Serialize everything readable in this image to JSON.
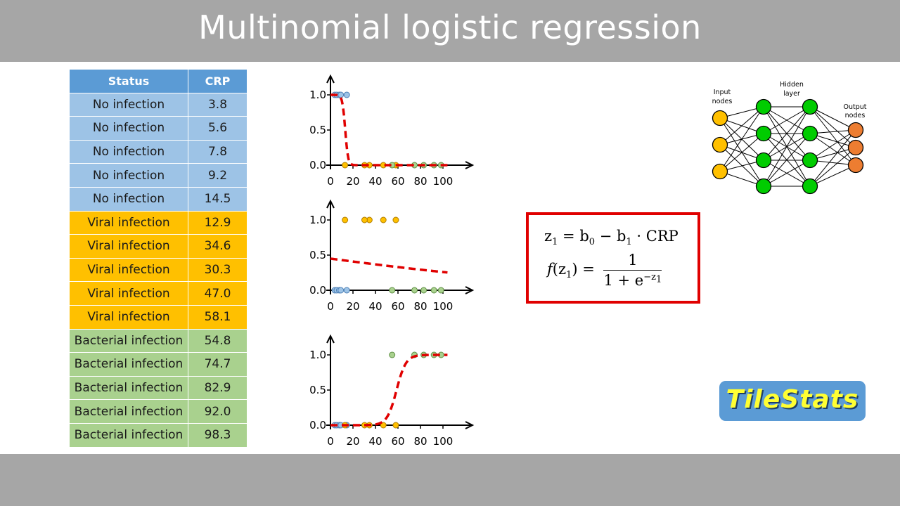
{
  "title": "Multinomial logistic regression",
  "table": {
    "headers": [
      "Status",
      "CRP"
    ],
    "rows": [
      {
        "status": "No infection",
        "crp": "3.8",
        "group": "no"
      },
      {
        "status": "No infection",
        "crp": "5.6",
        "group": "no"
      },
      {
        "status": "No infection",
        "crp": "7.8",
        "group": "no"
      },
      {
        "status": "No infection",
        "crp": "9.2",
        "group": "no"
      },
      {
        "status": "No infection",
        "crp": "14.5",
        "group": "no"
      },
      {
        "status": "Viral infection",
        "crp": "12.9",
        "group": "viral"
      },
      {
        "status": "Viral infection",
        "crp": "34.6",
        "group": "viral"
      },
      {
        "status": "Viral infection",
        "crp": "30.3",
        "group": "viral"
      },
      {
        "status": "Viral infection",
        "crp": "47.0",
        "group": "viral"
      },
      {
        "status": "Viral infection",
        "crp": "58.1",
        "group": "viral"
      },
      {
        "status": "Bacterial infection",
        "crp": "54.8",
        "group": "bact"
      },
      {
        "status": "Bacterial infection",
        "crp": "74.7",
        "group": "bact"
      },
      {
        "status": "Bacterial infection",
        "crp": "82.9",
        "group": "bact"
      },
      {
        "status": "Bacterial infection",
        "crp": "92.0",
        "group": "bact"
      },
      {
        "status": "Bacterial infection",
        "crp": "98.3",
        "group": "bact"
      }
    ]
  },
  "colors": {
    "no_infection": "#9dc3e6",
    "viral": "#ffc000",
    "bacterial": "#a9d18e",
    "curve": "#e00000",
    "header": "#5b9bd5"
  },
  "chart_data": [
    {
      "type": "scatter",
      "xticks": [
        "0",
        "20",
        "40",
        "60",
        "80",
        "100"
      ],
      "yticks": [
        "0.0",
        "0.5",
        "1.0"
      ],
      "xlim": [
        0,
        100
      ],
      "ylim": [
        0,
        1
      ],
      "points": [
        {
          "x": 3.8,
          "y": 1,
          "c": "no"
        },
        {
          "x": 5.6,
          "y": 1,
          "c": "no"
        },
        {
          "x": 7.8,
          "y": 1,
          "c": "no"
        },
        {
          "x": 9.2,
          "y": 1,
          "c": "no"
        },
        {
          "x": 14.5,
          "y": 1,
          "c": "no"
        },
        {
          "x": 12.9,
          "y": 0,
          "c": "viral"
        },
        {
          "x": 34.6,
          "y": 0,
          "c": "viral"
        },
        {
          "x": 30.3,
          "y": 0,
          "c": "viral"
        },
        {
          "x": 47.0,
          "y": 0,
          "c": "viral"
        },
        {
          "x": 58.1,
          "y": 0,
          "c": "viral"
        },
        {
          "x": 54.8,
          "y": 0,
          "c": "bact"
        },
        {
          "x": 74.7,
          "y": 0,
          "c": "bact"
        },
        {
          "x": 82.9,
          "y": 0,
          "c": "bact"
        },
        {
          "x": 92.0,
          "y": 0,
          "c": "bact"
        },
        {
          "x": 98.3,
          "y": 0,
          "c": "bact"
        }
      ],
      "curve": {
        "model": "logistic",
        "b0": 10.5,
        "b1": 0.8
      }
    },
    {
      "type": "scatter",
      "xticks": [
        "0",
        "20",
        "40",
        "60",
        "80",
        "100"
      ],
      "yticks": [
        "0.0",
        "0.5",
        "1.0"
      ],
      "xlim": [
        0,
        100
      ],
      "ylim": [
        0,
        1
      ],
      "points": [
        {
          "x": 3.8,
          "y": 0,
          "c": "no"
        },
        {
          "x": 5.6,
          "y": 0,
          "c": "no"
        },
        {
          "x": 7.8,
          "y": 0,
          "c": "no"
        },
        {
          "x": 9.2,
          "y": 0,
          "c": "no"
        },
        {
          "x": 14.5,
          "y": 0,
          "c": "no"
        },
        {
          "x": 12.9,
          "y": 1,
          "c": "viral"
        },
        {
          "x": 34.6,
          "y": 1,
          "c": "viral"
        },
        {
          "x": 30.3,
          "y": 1,
          "c": "viral"
        },
        {
          "x": 47.0,
          "y": 1,
          "c": "viral"
        },
        {
          "x": 58.1,
          "y": 1,
          "c": "viral"
        },
        {
          "x": 54.8,
          "y": 0,
          "c": "bact"
        },
        {
          "x": 74.7,
          "y": 0,
          "c": "bact"
        },
        {
          "x": 82.9,
          "y": 0,
          "c": "bact"
        },
        {
          "x": 92.0,
          "y": 0,
          "c": "bact"
        },
        {
          "x": 98.3,
          "y": 0,
          "c": "bact"
        }
      ],
      "curve": {
        "model": "logistic",
        "b0": -0.2,
        "b1": 0.0085
      }
    },
    {
      "type": "scatter",
      "xticks": [
        "0",
        "20",
        "40",
        "60",
        "80",
        "100"
      ],
      "yticks": [
        "0.0",
        "0.5",
        "1.0"
      ],
      "xlim": [
        0,
        100
      ],
      "ylim": [
        0,
        1
      ],
      "points": [
        {
          "x": 3.8,
          "y": 0,
          "c": "no"
        },
        {
          "x": 5.6,
          "y": 0,
          "c": "no"
        },
        {
          "x": 7.8,
          "y": 0,
          "c": "no"
        },
        {
          "x": 9.2,
          "y": 0,
          "c": "no"
        },
        {
          "x": 14.5,
          "y": 0,
          "c": "no"
        },
        {
          "x": 12.9,
          "y": 0,
          "c": "viral"
        },
        {
          "x": 34.6,
          "y": 0,
          "c": "viral"
        },
        {
          "x": 30.3,
          "y": 0,
          "c": "viral"
        },
        {
          "x": 47.0,
          "y": 0,
          "c": "viral"
        },
        {
          "x": 58.1,
          "y": 0,
          "c": "viral"
        },
        {
          "x": 54.8,
          "y": 1,
          "c": "bact"
        },
        {
          "x": 74.7,
          "y": 1,
          "c": "bact"
        },
        {
          "x": 82.9,
          "y": 1,
          "c": "bact"
        },
        {
          "x": 92.0,
          "y": 1,
          "c": "bact"
        },
        {
          "x": 98.3,
          "y": 1,
          "c": "bact"
        }
      ],
      "curve": {
        "model": "logistic",
        "b0": -14.1,
        "b1": -0.24
      }
    }
  ],
  "formula": {
    "z_lhs": "z",
    "z_sub": "1",
    "z_rhs_1": "= b",
    "b0_sub": "0",
    "minus": " − b",
    "b1_sub": "1",
    "crp": " · CRP",
    "f_lhs": "f",
    "f_arg": "(z",
    "f_arg_sub": "1",
    "f_close": ")",
    "eq": " = ",
    "numerator": "1",
    "den_base": "1 + e",
    "den_exp": "−z",
    "den_exp_sub": "1"
  },
  "network": {
    "input_label_1": "Input",
    "input_label_2": "nodes",
    "hidden_label_1": "Hidden",
    "hidden_label_2": "layer",
    "output_label_1": "Output",
    "output_label_2": "nodes",
    "input_color": "#ffc000",
    "hidden_color": "#00cc00",
    "output_color": "#ed7d31"
  },
  "logo": "TileStats"
}
